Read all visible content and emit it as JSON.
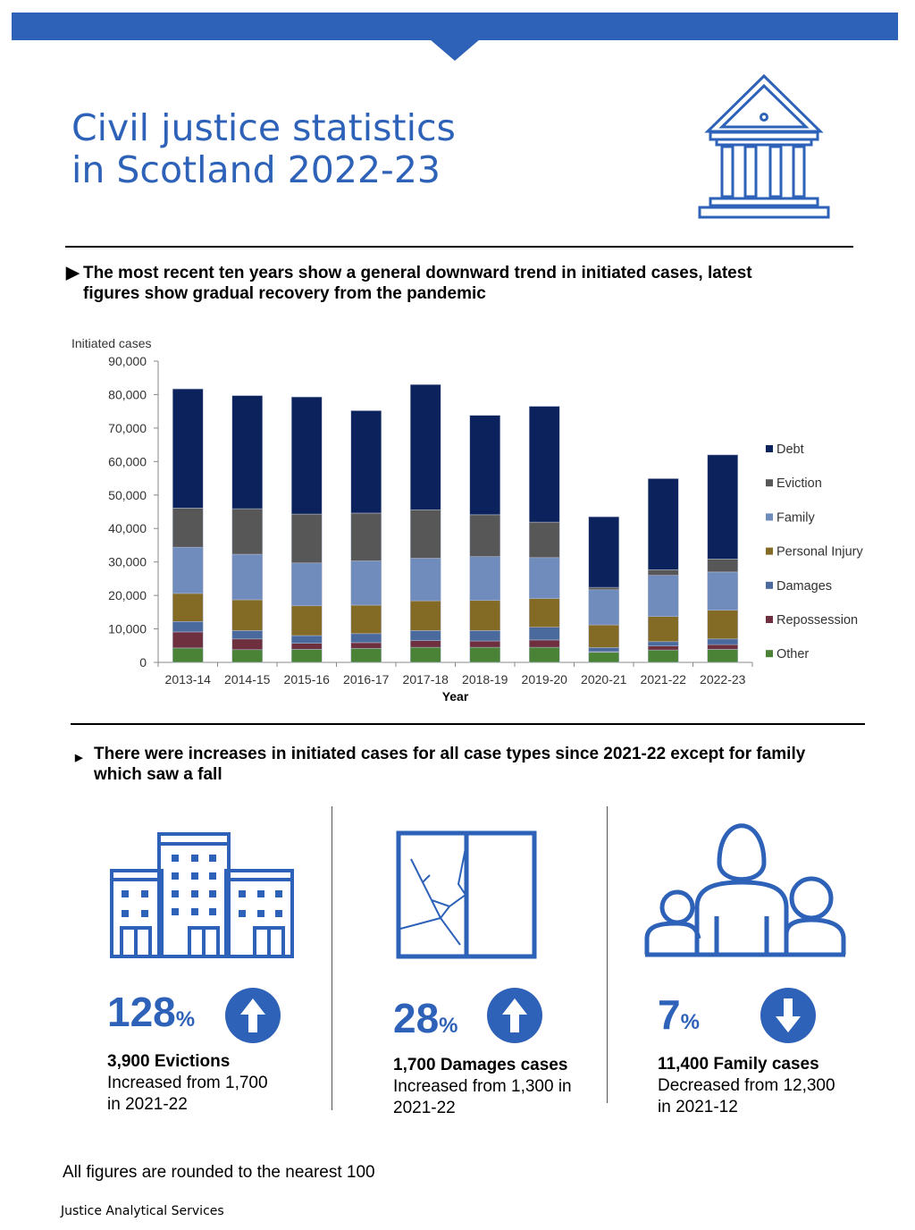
{
  "header": {
    "title_line1": "Civil justice statistics",
    "title_line2": "in Scotland 2022-23"
  },
  "headline1": "The most recent ten years show a general downward trend in initiated cases, latest figures show gradual recovery from the pandemic",
  "headline2": "There were increases in initiated cases for all case types since 2021-22 except for family which saw a fall",
  "chart_data": {
    "type": "bar",
    "stacked": true,
    "ylabel": "Initiated cases",
    "xlabel": "Year",
    "ylim": [
      0,
      90000
    ],
    "yticks": [
      "0",
      "10,000",
      "20,000",
      "30,000",
      "40,000",
      "50,000",
      "60,000",
      "70,000",
      "80,000",
      "90,000"
    ],
    "categories": [
      "2013-14",
      "2014-15",
      "2015-16",
      "2016-17",
      "2017-18",
      "2018-19",
      "2019-20",
      "2020-21",
      "2021-22",
      "2022-23"
    ],
    "legend_position": "right",
    "series": [
      {
        "name": "Other",
        "color": "#4a8236",
        "values": [
          4300,
          3800,
          3900,
          4200,
          4500,
          4500,
          4500,
          3000,
          3700,
          3900
        ]
      },
      {
        "name": "Repossession",
        "color": "#6e2f3e",
        "values": [
          4800,
          3200,
          1800,
          1700,
          2000,
          1900,
          2200,
          200,
          1200,
          1400
        ]
      },
      {
        "name": "Damages",
        "color": "#4a6a9e",
        "values": [
          3100,
          2500,
          2300,
          2700,
          3000,
          3100,
          3800,
          1200,
          1300,
          1700
        ]
      },
      {
        "name": "Personal Injury",
        "color": "#836a25",
        "values": [
          8400,
          9200,
          8900,
          8500,
          8900,
          9000,
          8600,
          6800,
          7500,
          8600
        ]
      },
      {
        "name": "Family",
        "color": "#6f8cbc",
        "values": [
          13800,
          13600,
          12800,
          13200,
          12700,
          13100,
          12200,
          10500,
          12300,
          11400
        ]
      },
      {
        "name": "Eviction",
        "color": "#575757",
        "values": [
          11700,
          13600,
          14600,
          14300,
          14500,
          12500,
          10600,
          700,
          1700,
          3900
        ]
      },
      {
        "name": "Debt",
        "color": "#0b225c",
        "values": [
          35600,
          33800,
          35000,
          30600,
          37400,
          29700,
          34600,
          21100,
          27200,
          31100
        ]
      }
    ]
  },
  "stats": [
    {
      "percent": "128",
      "unit": "%",
      "direction": "up",
      "bold": "3,900 Evictions",
      "line2": "Increased from 1,700",
      "line3": "in 2021-22"
    },
    {
      "percent": "28",
      "unit": "%",
      "direction": "up",
      "bold": "1,700 Damages cases",
      "line2": "Increased from 1,300 in",
      "line3": "2021-22"
    },
    {
      "percent": "7",
      "unit": "%",
      "direction": "down",
      "bold": "11,400 Family cases",
      "line2": "Decreased from 12,300",
      "line3": "in 2021-12"
    }
  ],
  "footnote": "All figures are rounded to the nearest 100",
  "footer": "Justice Analytical Services",
  "colors": {
    "accent": "#2e62b8"
  }
}
